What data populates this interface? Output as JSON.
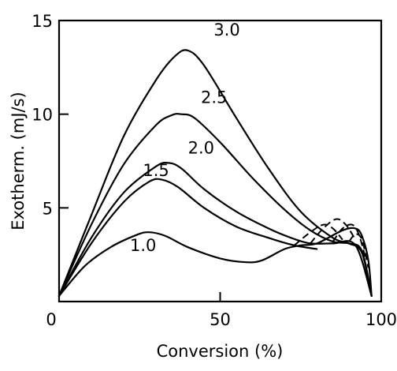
{
  "chart_data": {
    "type": "line",
    "title": "",
    "xlabel": "Conversion (%)",
    "ylabel": "Exotherm. (mJ/s)",
    "xlim": [
      0,
      100
    ],
    "ylim": [
      0,
      15
    ],
    "grid": false,
    "legend": "none",
    "x_ticks": [
      {
        "value": 0,
        "label": "0"
      },
      {
        "value": 50,
        "label": "50"
      },
      {
        "value": 100,
        "label": "100"
      }
    ],
    "y_ticks": [
      {
        "value": 5,
        "label": "5"
      },
      {
        "value": 10,
        "label": "10"
      },
      {
        "value": 15,
        "label": "15"
      }
    ],
    "series": [
      {
        "name": "3.0",
        "points": [
          [
            0,
            0.3
          ],
          [
            10,
            4.6
          ],
          [
            20,
            8.8
          ],
          [
            30,
            11.8
          ],
          [
            36,
            13.1
          ],
          [
            40,
            13.4
          ],
          [
            45,
            12.6
          ],
          [
            55,
            9.8
          ],
          [
            65,
            7.1
          ],
          [
            75,
            4.8
          ],
          [
            85,
            3.4
          ],
          [
            90,
            3.1
          ],
          [
            94,
            2.6
          ],
          [
            97,
            0.3
          ]
        ],
        "dashed": [
          [
            90,
            3.2
          ],
          [
            92,
            3.6
          ],
          [
            94,
            3.3
          ],
          [
            96,
            1.8
          ]
        ]
      },
      {
        "name": "2.5",
        "points": [
          [
            0,
            0.3
          ],
          [
            10,
            4.1
          ],
          [
            20,
            7.3
          ],
          [
            30,
            9.4
          ],
          [
            35,
            9.95
          ],
          [
            38,
            10.0
          ],
          [
            42,
            9.8
          ],
          [
            50,
            8.5
          ],
          [
            60,
            6.6
          ],
          [
            70,
            4.9
          ],
          [
            78,
            3.8
          ],
          [
            85,
            3.2
          ],
          [
            90,
            3.1
          ],
          [
            94,
            2.7
          ],
          [
            97,
            0.3
          ]
        ],
        "dashed": [
          [
            85,
            3.2
          ],
          [
            88,
            3.9
          ],
          [
            91,
            4.1
          ],
          [
            93,
            3.6
          ],
          [
            95,
            2.4
          ]
        ]
      },
      {
        "name": "2.0",
        "points": [
          [
            0,
            0.3
          ],
          [
            10,
            3.4
          ],
          [
            20,
            5.8
          ],
          [
            30,
            7.2
          ],
          [
            34,
            7.4
          ],
          [
            38,
            7.1
          ],
          [
            45,
            6.0
          ],
          [
            55,
            4.8
          ],
          [
            65,
            3.9
          ],
          [
            72,
            3.4
          ],
          [
            78,
            3.1
          ],
          [
            85,
            3.1
          ],
          [
            92,
            3.0
          ],
          [
            97,
            0.3
          ]
        ],
        "dashed": [
          [
            78,
            3.1
          ],
          [
            82,
            3.9
          ],
          [
            86,
            4.4
          ],
          [
            89,
            4.1
          ],
          [
            92,
            3.3
          ]
        ]
      },
      {
        "name": "1.5",
        "points": [
          [
            0,
            0.3
          ],
          [
            10,
            3.1
          ],
          [
            20,
            5.3
          ],
          [
            28,
            6.4
          ],
          [
            32,
            6.5
          ],
          [
            37,
            6.1
          ],
          [
            45,
            5.0
          ],
          [
            55,
            4.0
          ],
          [
            65,
            3.4
          ],
          [
            73,
            3.0
          ],
          [
            80,
            2.8
          ]
        ],
        "dashed": [
          [
            73,
            3.0
          ],
          [
            78,
            3.7
          ],
          [
            82,
            4.1
          ],
          [
            85,
            3.9
          ],
          [
            88,
            3.3
          ]
        ]
      },
      {
        "name": "1.0",
        "points": [
          [
            0,
            0.3
          ],
          [
            8,
            1.9
          ],
          [
            16,
            2.9
          ],
          [
            24,
            3.55
          ],
          [
            28,
            3.7
          ],
          [
            33,
            3.5
          ],
          [
            40,
            2.9
          ],
          [
            50,
            2.3
          ],
          [
            58,
            2.1
          ],
          [
            63,
            2.2
          ],
          [
            70,
            2.8
          ],
          [
            75,
            3.0
          ],
          [
            80,
            3.1
          ],
          [
            88,
            3.8
          ],
          [
            92,
            3.9
          ],
          [
            94,
            3.5
          ],
          [
            96,
            2.2
          ],
          [
            97,
            0.3
          ]
        ],
        "dashed": []
      }
    ],
    "annotations": [
      {
        "text": "3.0",
        "x": 48,
        "y": 14.2
      },
      {
        "text": "2.5",
        "x": 44,
        "y": 10.6
      },
      {
        "text": "2.0",
        "x": 40,
        "y": 7.9
      },
      {
        "text": "1.5",
        "x": 26,
        "y": 6.7
      },
      {
        "text": "1.0",
        "x": 22,
        "y": 2.7
      }
    ]
  }
}
